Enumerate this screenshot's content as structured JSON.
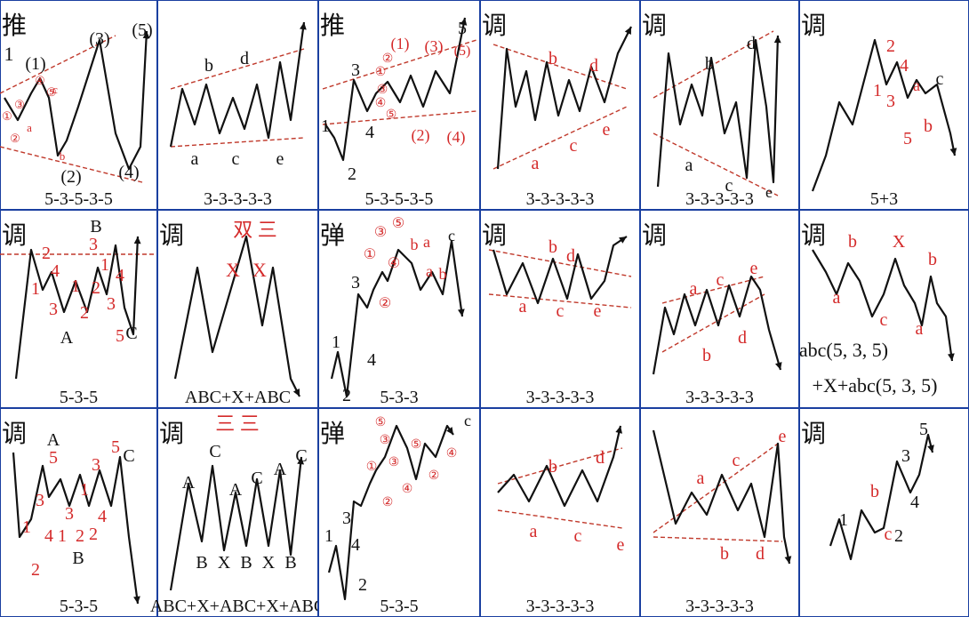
{
  "colors": {
    "grid": "#1a3fa0",
    "wave": "#111111",
    "red": "#d42a2a",
    "trend": "#c0392b"
  },
  "panels": [
    {
      "title": "推",
      "footer": "5-3-5-3-5",
      "black_labels": [
        {
          "t": "1"
        },
        {
          "t": "(1)"
        },
        {
          "t": "(3)"
        },
        {
          "t": "(5)"
        },
        {
          "t": "(2)"
        },
        {
          "t": "(4)"
        }
      ],
      "red_labels": [
        {
          "t": "①"
        },
        {
          "t": "②"
        },
        {
          "t": "③"
        },
        {
          "t": "④"
        },
        {
          "t": "⑤"
        },
        {
          "t": "a"
        },
        {
          "t": "b"
        },
        {
          "t": "c"
        }
      ]
    },
    {
      "title": "",
      "footer": "3-3-3-3-3",
      "black_labels": [
        {
          "t": "b"
        },
        {
          "t": "d"
        },
        {
          "t": "a"
        },
        {
          "t": "c"
        },
        {
          "t": "e"
        }
      ],
      "red_labels": []
    },
    {
      "title": "推",
      "footer": "5-3-5-3-5",
      "black_labels": [
        {
          "t": "5"
        },
        {
          "t": "3"
        },
        {
          "t": "1"
        },
        {
          "t": "2"
        },
        {
          "t": "4"
        }
      ],
      "red_labels": [
        {
          "t": "(1)"
        },
        {
          "t": "(3)"
        },
        {
          "t": "(5)"
        },
        {
          "t": "(2)"
        },
        {
          "t": "(4)"
        },
        {
          "t": "①"
        },
        {
          "t": "②"
        },
        {
          "t": "③"
        },
        {
          "t": "④"
        },
        {
          "t": "⑤"
        }
      ]
    },
    {
      "title": "调",
      "footer": "3-3-3-3-3",
      "black_labels": [],
      "red_labels": [
        {
          "t": "b"
        },
        {
          "t": "d"
        },
        {
          "t": "a"
        },
        {
          "t": "c"
        },
        {
          "t": "e"
        }
      ]
    },
    {
      "title": "调",
      "footer": "3-3-3-3-3",
      "black_labels": [
        {
          "t": "b"
        },
        {
          "t": "d"
        },
        {
          "t": "a"
        },
        {
          "t": "c"
        },
        {
          "t": "e"
        }
      ],
      "red_labels": []
    },
    {
      "title": "调",
      "footer": "5+3",
      "black_labels": [
        {
          "t": "c"
        }
      ],
      "red_labels": [
        {
          "t": "2"
        },
        {
          "t": "4"
        },
        {
          "t": "1"
        },
        {
          "t": "3"
        },
        {
          "t": "a"
        },
        {
          "t": "5"
        },
        {
          "t": "b"
        }
      ]
    },
    {
      "title": "调",
      "footer": "5-3-5",
      "black_labels": [
        {
          "t": "B"
        },
        {
          "t": "A"
        },
        {
          "t": "C"
        }
      ],
      "red_labels": [
        {
          "t": "2"
        },
        {
          "t": "4"
        },
        {
          "t": "1"
        },
        {
          "t": "3"
        },
        {
          "t": "1"
        },
        {
          "t": "2"
        },
        {
          "t": "3"
        },
        {
          "t": "1"
        },
        {
          "t": "2"
        },
        {
          "t": "4"
        },
        {
          "t": "3"
        },
        {
          "t": "5"
        }
      ]
    },
    {
      "title": "调",
      "footer": "ABC+X+ABC",
      "black_labels": [],
      "red_labels": [
        {
          "t": "双 三"
        },
        {
          "t": "X"
        },
        {
          "t": "X"
        }
      ]
    },
    {
      "title": "弹",
      "footer": "5-3-3",
      "black_labels": [
        {
          "t": "1"
        },
        {
          "t": "2"
        },
        {
          "t": "3"
        },
        {
          "t": "4"
        },
        {
          "t": "c"
        }
      ],
      "red_labels": [
        {
          "t": "③"
        },
        {
          "t": "⑤"
        },
        {
          "t": "①"
        },
        {
          "t": "④"
        },
        {
          "t": "②"
        },
        {
          "t": "b"
        },
        {
          "t": "a"
        },
        {
          "t": "a"
        },
        {
          "t": "b"
        }
      ]
    },
    {
      "title": "调",
      "footer": "3-3-3-3-3",
      "black_labels": [],
      "red_labels": [
        {
          "t": "b"
        },
        {
          "t": "d"
        },
        {
          "t": "a"
        },
        {
          "t": "c"
        },
        {
          "t": "e"
        }
      ]
    },
    {
      "title": "调",
      "footer": "3-3-3-3-3",
      "black_labels": [],
      "red_labels": [
        {
          "t": "a"
        },
        {
          "t": "c"
        },
        {
          "t": "e"
        },
        {
          "t": "b"
        },
        {
          "t": "d"
        }
      ]
    },
    {
      "title": "调",
      "footer": "",
      "black_labels": [
        {
          "t": "abc(5, 3, 5)"
        },
        {
          "t": "+X+abc(5, 3, 5)"
        }
      ],
      "red_labels": [
        {
          "t": "b"
        },
        {
          "t": "X"
        },
        {
          "t": "b"
        },
        {
          "t": "a"
        },
        {
          "t": "c"
        },
        {
          "t": "a"
        }
      ]
    },
    {
      "title": "调",
      "footer": "5-3-5",
      "black_labels": [
        {
          "t": "A"
        },
        {
          "t": "B"
        },
        {
          "t": "C"
        }
      ],
      "red_labels": [
        {
          "t": "5"
        },
        {
          "t": "3"
        },
        {
          "t": "1"
        },
        {
          "t": "2"
        },
        {
          "t": "4"
        },
        {
          "t": "1"
        },
        {
          "t": "3"
        },
        {
          "t": "2"
        },
        {
          "t": "1"
        },
        {
          "t": "2"
        },
        {
          "t": "4"
        },
        {
          "t": "3"
        },
        {
          "t": "5"
        }
      ]
    },
    {
      "title": "调",
      "footer": "ABC+X+ABC+X+ABC",
      "black_labels": [
        {
          "t": "A"
        },
        {
          "t": "C"
        },
        {
          "t": "A"
        },
        {
          "t": "C"
        },
        {
          "t": "A"
        },
        {
          "t": "C"
        },
        {
          "t": "B"
        },
        {
          "t": "X"
        },
        {
          "t": "B"
        },
        {
          "t": "X"
        },
        {
          "t": "B"
        }
      ],
      "red_labels": [
        {
          "t": "三 三"
        }
      ]
    },
    {
      "title": "弹",
      "footer": "5-3-5",
      "black_labels": [
        {
          "t": "1"
        },
        {
          "t": "3"
        },
        {
          "t": "4"
        },
        {
          "t": "2"
        },
        {
          "t": "c"
        }
      ],
      "red_labels": [
        {
          "t": "⑤"
        },
        {
          "t": "③"
        },
        {
          "t": "①"
        },
        {
          "t": "③"
        },
        {
          "t": "⑤"
        },
        {
          "t": "②"
        },
        {
          "t": "④"
        },
        {
          "t": "②"
        },
        {
          "t": "④"
        }
      ]
    },
    {
      "title": "",
      "footer": "3-3-3-3-3",
      "black_labels": [],
      "red_labels": [
        {
          "t": "b"
        },
        {
          "t": "d"
        },
        {
          "t": "a"
        },
        {
          "t": "c"
        },
        {
          "t": "e"
        }
      ]
    },
    {
      "title": "",
      "footer": "3-3-3-3-3",
      "black_labels": [],
      "red_labels": [
        {
          "t": "e"
        },
        {
          "t": "c"
        },
        {
          "t": "a"
        },
        {
          "t": "b"
        },
        {
          "t": "d"
        }
      ]
    },
    {
      "title": "调",
      "footer": "",
      "black_labels": [
        {
          "t": "5"
        },
        {
          "t": "3"
        },
        {
          "t": "1"
        },
        {
          "t": "4"
        },
        {
          "t": "2"
        }
      ],
      "red_labels": [
        {
          "t": "b"
        },
        {
          "t": "c"
        }
      ]
    }
  ]
}
